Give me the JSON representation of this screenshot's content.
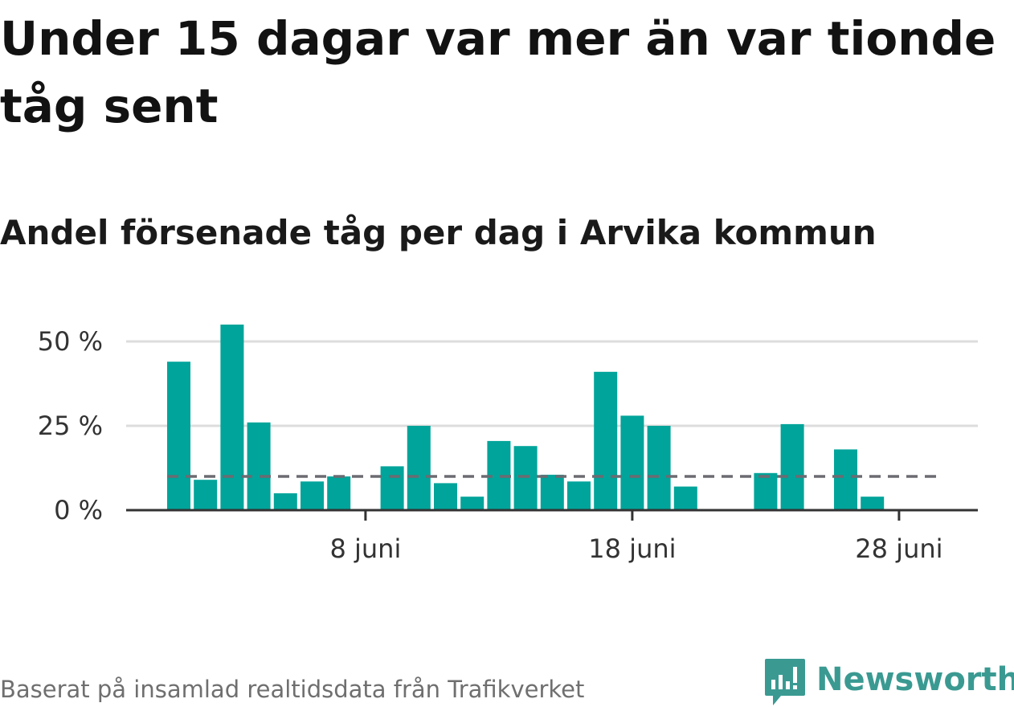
{
  "title": "Under 15 dagar var mer än var tionde tåg sent",
  "subtitle": "Andel försenade tåg per dag i Arvika kommun",
  "source": "Baserat på insamlad realtidsdata från Trafikverket",
  "logo": {
    "name": "Newsworthy",
    "icon": "newsworthy-logo-icon"
  },
  "colors": {
    "bar": "#00a49a",
    "reference_line": "#6b6b72",
    "grid": "#dddddd",
    "axis": "#333333"
  },
  "chart_data": {
    "type": "bar",
    "x_unit": "day of June",
    "x": [
      1,
      2,
      3,
      4,
      5,
      6,
      7,
      8,
      9,
      10,
      11,
      12,
      13,
      14,
      15,
      16,
      17,
      18,
      19,
      20,
      21,
      22,
      23,
      24,
      25,
      26,
      27,
      28,
      29
    ],
    "values": [
      44,
      9,
      55,
      26,
      5,
      8.5,
      10,
      null,
      13,
      25,
      8,
      4,
      20.5,
      19,
      10.5,
      8.5,
      41,
      28,
      25,
      7,
      null,
      null,
      11,
      25.5,
      null,
      18,
      4,
      null,
      null
    ],
    "reference_line": {
      "value": 10,
      "style": "dashed"
    },
    "ylim": [
      0,
      60
    ],
    "yticks": [
      0,
      25,
      50
    ],
    "ytick_labels": [
      "0 %",
      "25 %",
      "50 %"
    ],
    "xticks": [
      8,
      18,
      28
    ],
    "xtick_labels": [
      "8 juni",
      "18 juni",
      "28 juni"
    ],
    "grid": true
  }
}
